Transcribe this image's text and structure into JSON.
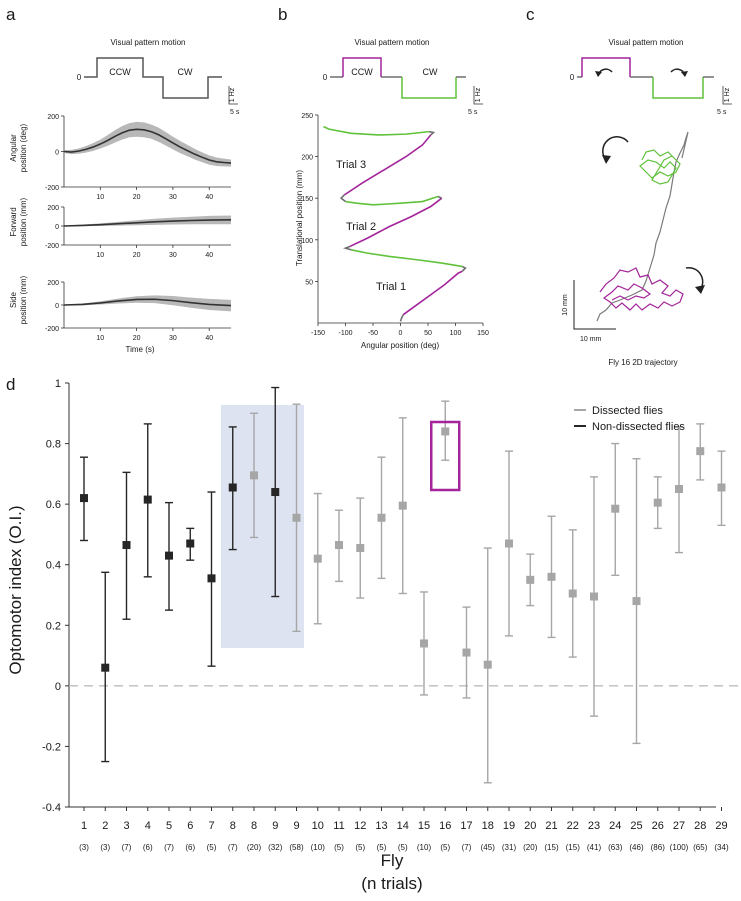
{
  "panel_labels": {
    "a": "a",
    "b": "b",
    "c": "c",
    "d": "d"
  },
  "stim": {
    "title": "Visual pattern motion",
    "zero": "0",
    "ccw": "CCW",
    "cw": "CW",
    "scale_hz": "1 Hz",
    "scale_s": "5 s",
    "color_ccw": "#a3249b",
    "color_cw": "#5fc23a",
    "color_neutral": "#6e6e6e"
  },
  "panel_a": {
    "angular": {
      "ylabel_1": "Angular",
      "ylabel_2": "position (deg)",
      "ylim": [
        -200,
        200
      ],
      "yticks": [
        "200",
        "0",
        "-200"
      ],
      "xticks": [
        "10",
        "20",
        "30",
        "40"
      ],
      "mean_x": [
        0,
        2,
        4,
        6,
        8,
        10,
        12,
        14,
        16,
        18,
        20,
        22,
        24,
        26,
        28,
        30,
        32,
        34,
        36,
        38,
        40,
        42,
        44,
        46
      ],
      "mean_y": [
        0,
        -3,
        2,
        12,
        25,
        42,
        62,
        85,
        105,
        120,
        125,
        122,
        112,
        95,
        72,
        48,
        25,
        5,
        -15,
        -32,
        -48,
        -58,
        -62,
        -65
      ],
      "sd": [
        8,
        12,
        15,
        18,
        22,
        25,
        30,
        35,
        38,
        40,
        42,
        42,
        40,
        40,
        38,
        36,
        34,
        32,
        30,
        28,
        26,
        24,
        22,
        20
      ]
    },
    "forward": {
      "ylabel_1": "Forward",
      "ylabel_2": "position (mm)",
      "ylim": [
        -200,
        200
      ],
      "yticks": [
        "200",
        "0",
        "-200"
      ],
      "xticks": [
        "10",
        "20",
        "30",
        "40"
      ],
      "mean_x": [
        0,
        5,
        10,
        15,
        20,
        25,
        30,
        35,
        40,
        46
      ],
      "mean_y": [
        0,
        6,
        14,
        24,
        34,
        44,
        52,
        58,
        62,
        65
      ],
      "sd": [
        3,
        8,
        14,
        20,
        26,
        32,
        36,
        40,
        44,
        46
      ]
    },
    "side": {
      "ylabel_1": "Side",
      "ylabel_2": "position (mm)",
      "ylim": [
        -200,
        200
      ],
      "yticks": [
        "200",
        "0",
        "-200"
      ],
      "xticks": [
        "10",
        "20",
        "30",
        "40"
      ],
      "xlabel": "Time (s)",
      "mean_x": [
        0,
        5,
        10,
        15,
        20,
        25,
        30,
        35,
        40,
        46
      ],
      "mean_y": [
        0,
        5,
        18,
        35,
        48,
        50,
        38,
        20,
        5,
        -5
      ],
      "sd": [
        3,
        8,
        14,
        22,
        28,
        34,
        40,
        44,
        48,
        50
      ]
    }
  },
  "panel_b": {
    "ylabel": "Translational position (mm)",
    "xlabel": "Angular position (deg)",
    "xticks": [
      "-150",
      "-100",
      "-50",
      "0",
      "50",
      "100",
      "150"
    ],
    "yticks": [
      "50",
      "100",
      "150",
      "200",
      "250"
    ],
    "xlim": [
      -150,
      150
    ],
    "ylim": [
      0,
      250
    ],
    "trial_labels": [
      "Trial 1",
      "Trial 2",
      "Trial 3"
    ],
    "segments": [
      {
        "phase": "neutral",
        "pts": [
          [
            0,
            2
          ],
          [
            2,
            6
          ],
          [
            5,
            10
          ]
        ]
      },
      {
        "phase": "ccw",
        "pts": [
          [
            5,
            10
          ],
          [
            30,
            22
          ],
          [
            55,
            34
          ],
          [
            80,
            46
          ],
          [
            105,
            60
          ],
          [
            112,
            62
          ]
        ]
      },
      {
        "phase": "neutral",
        "pts": [
          [
            112,
            62
          ],
          [
            118,
            66
          ],
          [
            112,
            68
          ]
        ]
      },
      {
        "phase": "cw",
        "pts": [
          [
            112,
            68
          ],
          [
            75,
            72
          ],
          [
            30,
            76
          ],
          [
            -20,
            80
          ],
          [
            -60,
            84
          ],
          [
            -90,
            88
          ]
        ]
      },
      {
        "phase": "neutral",
        "pts": [
          [
            -90,
            88
          ],
          [
            -100,
            90
          ],
          [
            -92,
            92
          ]
        ]
      },
      {
        "phase": "ccw",
        "pts": [
          [
            -92,
            92
          ],
          [
            -60,
            102
          ],
          [
            -20,
            116
          ],
          [
            20,
            128
          ],
          [
            55,
            140
          ],
          [
            75,
            150
          ]
        ]
      },
      {
        "phase": "neutral",
        "pts": [
          [
            75,
            150
          ],
          [
            68,
            152
          ]
        ]
      },
      {
        "phase": "cw",
        "pts": [
          [
            68,
            152
          ],
          [
            40,
            146
          ],
          [
            0,
            144
          ],
          [
            -50,
            142
          ],
          [
            -80,
            144
          ],
          [
            -100,
            146
          ]
        ]
      },
      {
        "phase": "neutral",
        "pts": [
          [
            -100,
            146
          ],
          [
            -108,
            150
          ],
          [
            -102,
            154
          ]
        ]
      },
      {
        "phase": "ccw",
        "pts": [
          [
            -102,
            154
          ],
          [
            -70,
            168
          ],
          [
            -30,
            184
          ],
          [
            10,
            200
          ],
          [
            40,
            214
          ],
          [
            55,
            226
          ]
        ]
      },
      {
        "phase": "neutral",
        "pts": [
          [
            55,
            226
          ],
          [
            60,
            229
          ],
          [
            52,
            230
          ]
        ]
      },
      {
        "phase": "cw",
        "pts": [
          [
            52,
            230
          ],
          [
            10,
            227
          ],
          [
            -40,
            226
          ],
          [
            -90,
            228
          ],
          [
            -130,
            233
          ],
          [
            -140,
            236
          ]
        ]
      }
    ]
  },
  "panel_c": {
    "scale_x": "10 mm",
    "scale_y": "10 mm",
    "caption": "Fly 16 2D trajectory"
  },
  "panel_d": {
    "ylabel": "Optomotor index (O.I.)",
    "xlabel_1": "Fly",
    "xlabel_2": "(n trials)",
    "ylim": [
      -0.4,
      1.0
    ],
    "yticks": [
      {
        "v": 1.0,
        "t": "1"
      },
      {
        "v": 0.8,
        "t": "0.8"
      },
      {
        "v": 0.6,
        "t": "0.6"
      },
      {
        "v": 0.4,
        "t": "0.4"
      },
      {
        "v": 0.2,
        "t": "0.2"
      },
      {
        "v": 0.0,
        "t": "0"
      },
      {
        "v": -0.2,
        "t": "-0.2"
      },
      {
        "v": -0.4,
        "t": "-0.4"
      }
    ],
    "legend": {
      "dissected": "Dissected flies",
      "non_dissected": "Non-dissected flies"
    },
    "color_dissected": "#a6a6a6",
    "color_non_dissected": "#262626",
    "highlight_box_color": "#dde3f1",
    "outline_box_color": "#a3249b"
  },
  "chart_data": {
    "type": "scatter",
    "title": "",
    "xlabel": "Fly (n trials)",
    "ylabel": "Optomotor index (O.I.)",
    "ylim": [
      -0.4,
      1.0
    ],
    "series": [
      {
        "name": "Non-dissected flies",
        "points": [
          {
            "fly": "1",
            "n": "(3)",
            "mean": 0.62,
            "low": 0.48,
            "high": 0.755
          },
          {
            "fly": "2",
            "n": "(3)",
            "mean": 0.06,
            "low": -0.25,
            "high": 0.375
          },
          {
            "fly": "3",
            "n": "(7)",
            "mean": 0.465,
            "low": 0.22,
            "high": 0.705
          },
          {
            "fly": "4",
            "n": "(6)",
            "mean": 0.615,
            "low": 0.36,
            "high": 0.865
          },
          {
            "fly": "5",
            "n": "(7)",
            "mean": 0.43,
            "low": 0.25,
            "high": 0.605
          },
          {
            "fly": "6",
            "n": "(6)",
            "mean": 0.47,
            "low": 0.415,
            "high": 0.52
          },
          {
            "fly": "7",
            "n": "(5)",
            "mean": 0.355,
            "low": 0.065,
            "high": 0.64
          },
          {
            "fly": "8",
            "n": "(7)",
            "mean": 0.655,
            "low": 0.45,
            "high": 0.855
          },
          {
            "fly": "9",
            "n": "(32)",
            "mean": 0.64,
            "low": 0.295,
            "high": 0.985
          }
        ]
      },
      {
        "name": "Dissected flies",
        "points": [
          {
            "fly": "8",
            "n": "(20)",
            "mean": 0.695,
            "low": 0.49,
            "high": 0.9
          },
          {
            "fly": "9",
            "n": "(58)",
            "mean": 0.555,
            "low": 0.18,
            "high": 0.93
          },
          {
            "fly": "10",
            "n": "(10)",
            "mean": 0.42,
            "low": 0.205,
            "high": 0.635
          },
          {
            "fly": "11",
            "n": "(5)",
            "mean": 0.465,
            "low": 0.345,
            "high": 0.58
          },
          {
            "fly": "12",
            "n": "(5)",
            "mean": 0.455,
            "low": 0.29,
            "high": 0.62
          },
          {
            "fly": "13",
            "n": "(5)",
            "mean": 0.555,
            "low": 0.355,
            "high": 0.755
          },
          {
            "fly": "14",
            "n": "(5)",
            "mean": 0.595,
            "low": 0.305,
            "high": 0.885
          },
          {
            "fly": "15",
            "n": "(10)",
            "mean": 0.14,
            "low": -0.03,
            "high": 0.31
          },
          {
            "fly": "16",
            "n": "(5)",
            "mean": 0.84,
            "low": 0.745,
            "high": 0.94
          },
          {
            "fly": "17",
            "n": "(7)",
            "mean": 0.11,
            "low": -0.04,
            "high": 0.26
          },
          {
            "fly": "18",
            "n": "(45)",
            "mean": 0.07,
            "low": -0.32,
            "high": 0.455
          },
          {
            "fly": "19",
            "n": "(31)",
            "mean": 0.47,
            "low": 0.165,
            "high": 0.775
          },
          {
            "fly": "20",
            "n": "(20)",
            "mean": 0.35,
            "low": 0.265,
            "high": 0.435
          },
          {
            "fly": "21",
            "n": "(15)",
            "mean": 0.36,
            "low": 0.16,
            "high": 0.56
          },
          {
            "fly": "22",
            "n": "(15)",
            "mean": 0.305,
            "low": 0.095,
            "high": 0.515
          },
          {
            "fly": "23",
            "n": "(41)",
            "mean": 0.295,
            "low": -0.1,
            "high": 0.69
          },
          {
            "fly": "24",
            "n": "(63)",
            "mean": 0.585,
            "low": 0.365,
            "high": 0.8
          },
          {
            "fly": "25",
            "n": "(46)",
            "mean": 0.28,
            "low": -0.19,
            "high": 0.75
          },
          {
            "fly": "26",
            "n": "(86)",
            "mean": 0.605,
            "low": 0.52,
            "high": 0.69
          },
          {
            "fly": "27",
            "n": "(100)",
            "mean": 0.65,
            "low": 0.44,
            "high": 0.855
          },
          {
            "fly": "28",
            "n": "(65)",
            "mean": 0.775,
            "low": 0.68,
            "high": 0.865
          },
          {
            "fly": "29",
            "n": "(34)",
            "mean": 0.655,
            "low": 0.53,
            "high": 0.775
          }
        ]
      }
    ],
    "reference_line": 0
  }
}
